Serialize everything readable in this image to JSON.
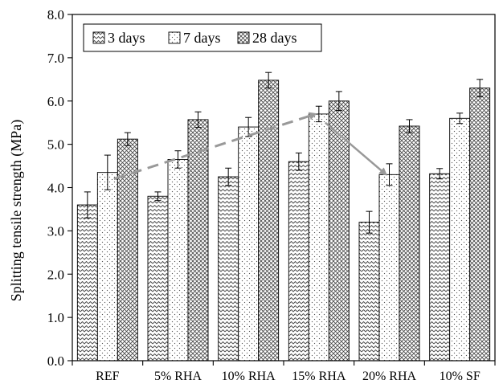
{
  "chart_data": {
    "type": "bar",
    "title": "",
    "xlabel": "",
    "ylabel": "Splitting tensile strength (MPa)",
    "ylim": [
      0,
      8
    ],
    "yticks": [
      "0.0",
      "1.0",
      "2.0",
      "3.0",
      "4.0",
      "5.0",
      "6.0",
      "7.0",
      "8.0"
    ],
    "grid": false,
    "legend_position": "top-left",
    "categories": [
      "REF",
      "5% RHA",
      "10% RHA",
      "15% RHA",
      "20% RHA",
      "10% SF"
    ],
    "series": [
      {
        "name": "3 days",
        "pattern": "wave",
        "values": [
          3.6,
          3.8,
          4.25,
          4.6,
          3.2,
          4.32
        ],
        "errors": [
          0.3,
          0.1,
          0.2,
          0.2,
          0.25,
          0.12
        ]
      },
      {
        "name": "7 days",
        "pattern": "dots",
        "values": [
          4.35,
          4.65,
          5.4,
          5.7,
          4.3,
          5.6
        ],
        "errors": [
          0.4,
          0.2,
          0.22,
          0.18,
          0.25,
          0.12
        ]
      },
      {
        "name": "28 days",
        "pattern": "cross",
        "values": [
          5.12,
          5.57,
          6.48,
          6.0,
          5.42,
          6.3
        ],
        "errors": [
          0.15,
          0.18,
          0.18,
          0.22,
          0.15,
          0.2
        ]
      }
    ],
    "annotations": [
      {
        "type": "dashed-arrow",
        "color": "#999999",
        "from": {
          "category": "REF",
          "y": 4.2
        },
        "to": {
          "category": "15% RHA",
          "y": 5.7
        }
      },
      {
        "type": "solid-arrow",
        "color": "#999999",
        "from": {
          "category": "15% RHA",
          "y": 5.5
        },
        "to": {
          "category": "20% RHA",
          "y": 4.3
        }
      }
    ]
  }
}
